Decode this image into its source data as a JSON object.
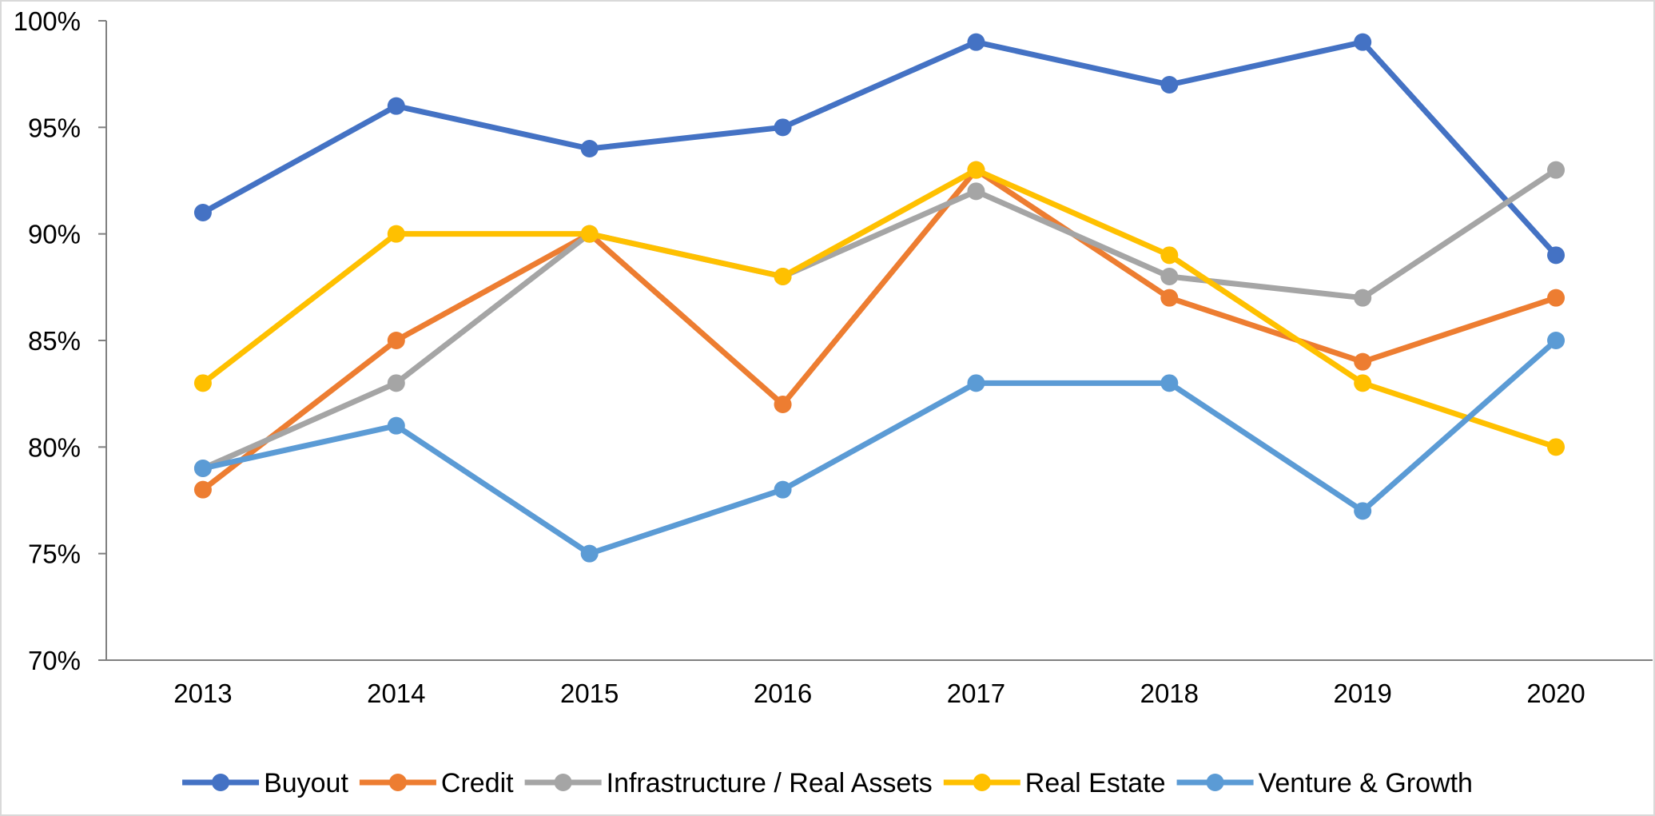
{
  "chart_data": {
    "type": "line",
    "categories": [
      "2013",
      "2014",
      "2015",
      "2016",
      "2017",
      "2018",
      "2019",
      "2020"
    ],
    "series": [
      {
        "name": "Buyout",
        "values": [
          91,
          96,
          94,
          95,
          99,
          97,
          99,
          89
        ],
        "color": "#4472C4"
      },
      {
        "name": "Credit",
        "values": [
          78,
          85,
          90,
          82,
          93,
          87,
          84,
          87
        ],
        "color": "#ED7D31"
      },
      {
        "name": "Infrastructure / Real Assets",
        "values": [
          79,
          83,
          90,
          88,
          92,
          88,
          87,
          93
        ],
        "color": "#A5A5A5"
      },
      {
        "name": "Real Estate",
        "values": [
          83,
          90,
          90,
          88,
          93,
          89,
          83,
          80
        ],
        "color": "#FFC000"
      },
      {
        "name": "Venture & Growth",
        "values": [
          79,
          81,
          75,
          78,
          83,
          83,
          77,
          85
        ],
        "color": "#5B9BD5"
      }
    ],
    "ylim": [
      70,
      100
    ],
    "yticks": [
      70,
      75,
      80,
      85,
      90,
      95,
      100
    ],
    "ytick_labels": [
      "70%",
      "75%",
      "80%",
      "85%",
      "90%",
      "95%",
      "100%"
    ],
    "title": "",
    "xlabel": "",
    "ylabel": "",
    "grid": false,
    "legend_position": "bottom",
    "axis_color": "#808080"
  }
}
